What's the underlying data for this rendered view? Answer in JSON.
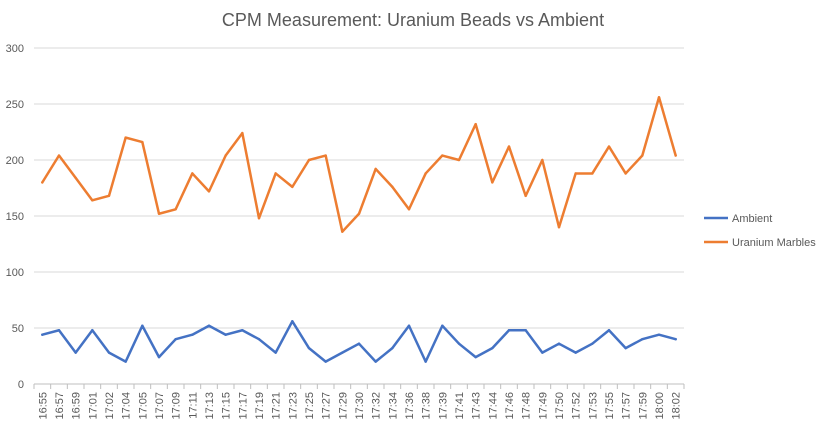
{
  "chart_data": {
    "type": "line",
    "title": "CPM Measurement: Uranium Beads vs Ambient",
    "xlabel": "",
    "ylabel": "",
    "ylim": [
      0,
      300
    ],
    "yticks": [
      0,
      50,
      100,
      150,
      200,
      250,
      300
    ],
    "grid": true,
    "legend_position": "right",
    "categories": [
      "16:55",
      "16:57",
      "16:59",
      "17:01",
      "17:02",
      "17:04",
      "17:05",
      "17:07",
      "17:09",
      "17:11",
      "17:13",
      "17:15",
      "17:17",
      "17:19",
      "17:21",
      "17:23",
      "17:25",
      "17:27",
      "17:29",
      "17:30",
      "17:32",
      "17:34",
      "17:36",
      "17:38",
      "17:39",
      "17:41",
      "17:43",
      "17:44",
      "17:46",
      "17:48",
      "17:49",
      "17:50",
      "17:52",
      "17:53",
      "17:55",
      "17:57",
      "17:59",
      "18:00",
      "18:02"
    ],
    "series": [
      {
        "name": "Ambient",
        "color": "#4472C4",
        "values": [
          44,
          48,
          28,
          48,
          28,
          20,
          52,
          24,
          40,
          44,
          52,
          44,
          48,
          40,
          28,
          56,
          32,
          20,
          28,
          36,
          20,
          32,
          52,
          20,
          52,
          36,
          24,
          32,
          48,
          48,
          28,
          36,
          28,
          36,
          48,
          32,
          40,
          44,
          40
        ]
      },
      {
        "name": "Uranium Marbles",
        "color": "#ED7D31",
        "values": [
          180,
          204,
          184,
          164,
          168,
          220,
          216,
          152,
          156,
          188,
          172,
          204,
          224,
          148,
          188,
          176,
          200,
          204,
          136,
          152,
          192,
          176,
          156,
          188,
          204,
          200,
          232,
          180,
          212,
          168,
          200,
          140,
          188,
          188,
          212,
          188,
          204,
          256,
          204
        ]
      }
    ]
  }
}
